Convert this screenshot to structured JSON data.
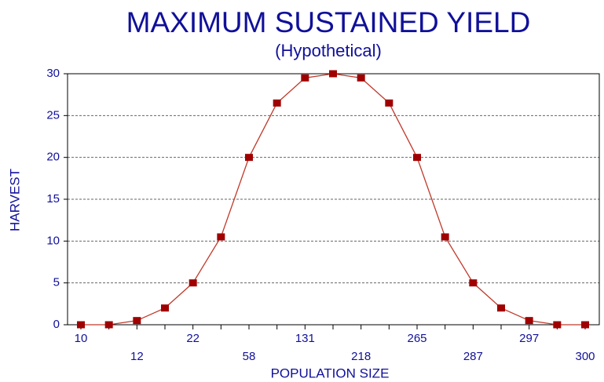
{
  "chart_data": {
    "type": "line",
    "title": "MAXIMUM SUSTAINED YIELD",
    "subtitle": "(Hypothetical)",
    "x_label": "POPULATION SIZE",
    "y_label": "HARVEST",
    "categories": [
      "10",
      null,
      "12",
      null,
      "22",
      null,
      "58",
      null,
      "131",
      null,
      "218",
      null,
      "265",
      null,
      "287",
      null,
      "297",
      null,
      "300"
    ],
    "series": [
      {
        "name": "HARVEST",
        "color": "#a00000",
        "values": [
          0,
          0,
          0.5,
          2,
          5,
          10.5,
          20,
          26.5,
          29.5,
          30,
          29.5,
          26.5,
          20,
          10.5,
          5,
          2,
          0.5,
          0,
          0
        ]
      }
    ],
    "ylim": [
      0,
      30
    ],
    "yticks": [
      0,
      5,
      10,
      15,
      20,
      25,
      30
    ],
    "grid": true
  }
}
